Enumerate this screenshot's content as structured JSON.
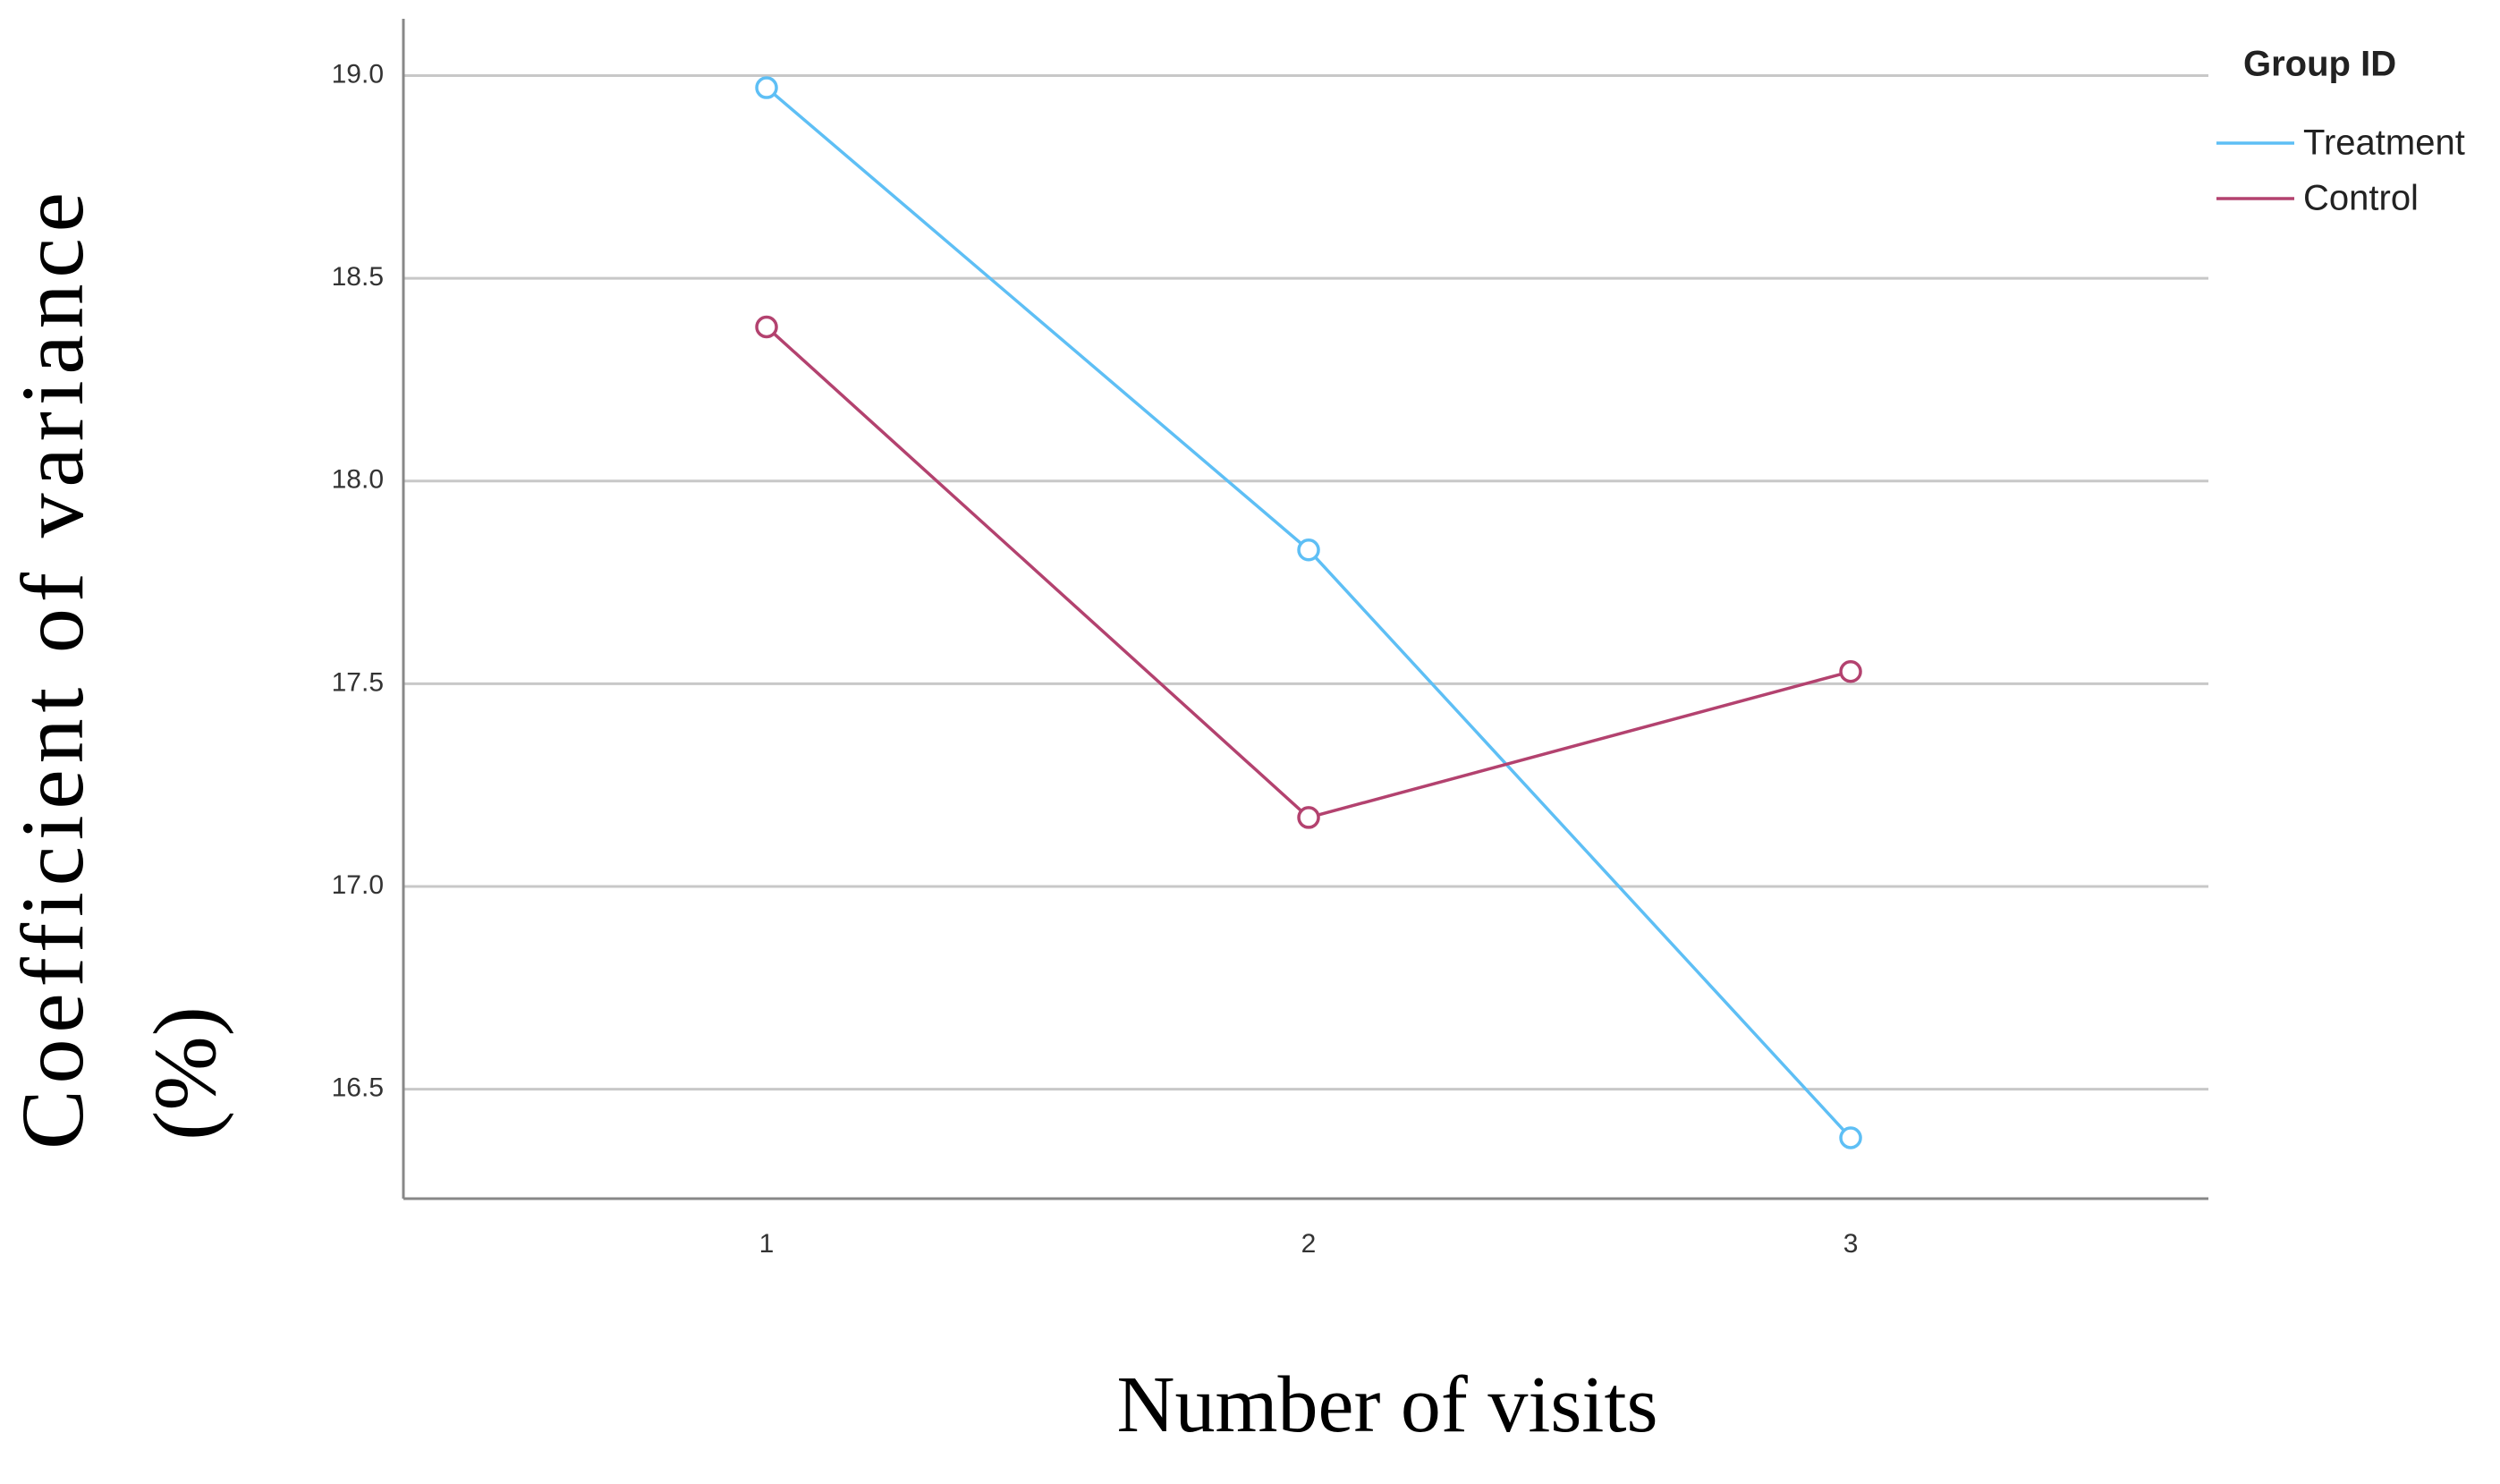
{
  "chart_data": {
    "type": "line",
    "x_label": "Number of visits",
    "y_label": [
      "Coefficient of variance",
      "(%)"
    ],
    "x": [
      1,
      2,
      3
    ],
    "xlim": [
      0.33,
      3.66
    ],
    "xticks": [
      1,
      2,
      3
    ],
    "ylim": [
      16.23,
      19.14
    ],
    "yticks": [
      {
        "value": 16.5,
        "label": "16.5"
      },
      {
        "value": 17,
        "label": "17.0"
      },
      17.5,
      {
        "value": 18,
        "label": "18.0"
      },
      18.5,
      {
        "value": 19,
        "label": "19.0"
      }
    ],
    "grid": true,
    "legend_title": "Group ID",
    "legend": "top-right",
    "series": [
      {
        "name": "Treatment",
        "color": "#5ebff5",
        "values": [
          18.97,
          17.83,
          16.38
        ]
      },
      {
        "name": "Control",
        "color": "#b3426f",
        "values": [
          18.38,
          17.17,
          17.53
        ]
      }
    ]
  }
}
